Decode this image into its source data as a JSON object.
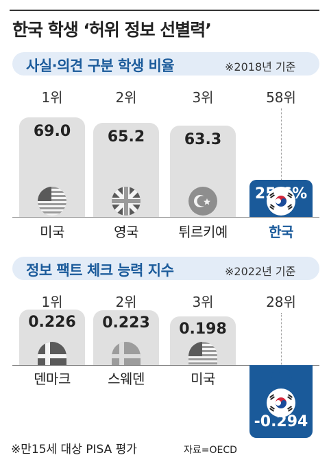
{
  "title": "한국 학생 ‘허위 정보 선별력’",
  "footnote": "※만15세 대상 PISA 평가",
  "source": "자료=OECD",
  "colors": {
    "accent": "#1a5a9a",
    "bar": "#e0e0e0",
    "section_bg": "#e3ecf7"
  },
  "chart_data": [
    {
      "type": "bar",
      "title": "사실·의견 구분 학생 비율",
      "basis": "※2018년 기준",
      "categories": [
        "미국",
        "영국",
        "튀르키예",
        "한국"
      ],
      "ranks": [
        "1위",
        "2위",
        "3위",
        "58위"
      ],
      "values": [
        69.0,
        65.2,
        63.3,
        25.6
      ],
      "value_labels": [
        "69.0",
        "65.2",
        "63.3",
        "25.6%"
      ],
      "flags": [
        "us-flag-icon",
        "uk-flag-icon",
        "turkey-flag-icon",
        "korea-flag-icon"
      ]
    },
    {
      "type": "bar",
      "title": "정보 팩트 체크 능력 지수",
      "basis": "※2022년 기준",
      "categories": [
        "덴마크",
        "스웨덴",
        "미국",
        "한국"
      ],
      "ranks": [
        "1위",
        "2위",
        "3위",
        "28위"
      ],
      "values": [
        0.226,
        0.223,
        0.198,
        -0.294
      ],
      "value_labels": [
        "0.226",
        "0.223",
        "0.198",
        "-0.294"
      ],
      "flags": [
        "denmark-flag-icon",
        "sweden-flag-icon",
        "us-flag-icon",
        "korea-flag-icon"
      ]
    }
  ]
}
